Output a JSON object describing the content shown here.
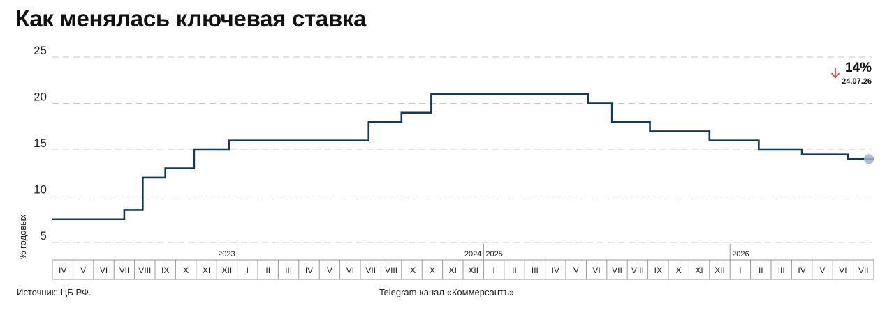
{
  "title": "Как менялась ключевая ставка",
  "source": "Источник: ЦБ РФ.",
  "credit": "Telegram-канал «Коммерсантъ»",
  "colors": {
    "line": "#113a57",
    "arrow": "#e0363a",
    "marker": "#9fb4c7"
  },
  "chart_data": {
    "type": "line",
    "title": "Как менялась ключевая ставка",
    "ylabel": "% годовых",
    "ylim": [
      5,
      25
    ],
    "yticks": [
      5,
      10,
      15,
      20,
      25
    ],
    "grid": true,
    "x_categories": [
      "IV",
      "V",
      "VI",
      "VII",
      "VIII",
      "IX",
      "X",
      "XI",
      "XII",
      "I",
      "II",
      "III",
      "IV",
      "V",
      "VI",
      "VII",
      "VIII",
      "IX",
      "X",
      "XI",
      "XII",
      "I",
      "II",
      "III",
      "IV",
      "V",
      "VI",
      "VII",
      "VIII",
      "IX",
      "X",
      "XI",
      "XII",
      "I",
      "II",
      "III",
      "IV",
      "V",
      "VI",
      "VII"
    ],
    "year_labels": [
      {
        "text": "2023",
        "index": 8
      },
      {
        "text": "2024",
        "index": 20
      },
      {
        "text": "2025",
        "index": 21
      },
      {
        "text": "2026",
        "index": 33
      }
    ],
    "steps": [
      {
        "x": 0.0,
        "y": 7.5
      },
      {
        "x": 3.5,
        "y": 8.5
      },
      {
        "x": 4.4,
        "y": 12.0
      },
      {
        "x": 5.5,
        "y": 13.0
      },
      {
        "x": 6.9,
        "y": 15.0
      },
      {
        "x": 8.6,
        "y": 16.0
      },
      {
        "x": 15.4,
        "y": 18.0
      },
      {
        "x": 17.0,
        "y": 19.0
      },
      {
        "x": 18.45,
        "y": 21.0
      },
      {
        "x": 26.1,
        "y": 20.0
      },
      {
        "x": 27.25,
        "y": 18.0
      },
      {
        "x": 29.1,
        "y": 17.0
      },
      {
        "x": 32.0,
        "y": 16.0
      },
      {
        "x": 34.4,
        "y": 15.0
      },
      {
        "x": 36.5,
        "y": 14.5
      },
      {
        "x": 38.75,
        "y": 14.0
      },
      {
        "x": 40.0,
        "y": 14.0
      }
    ],
    "current": {
      "value_label": "14%",
      "date_label": "24.07.26",
      "value": 14.0
    }
  }
}
